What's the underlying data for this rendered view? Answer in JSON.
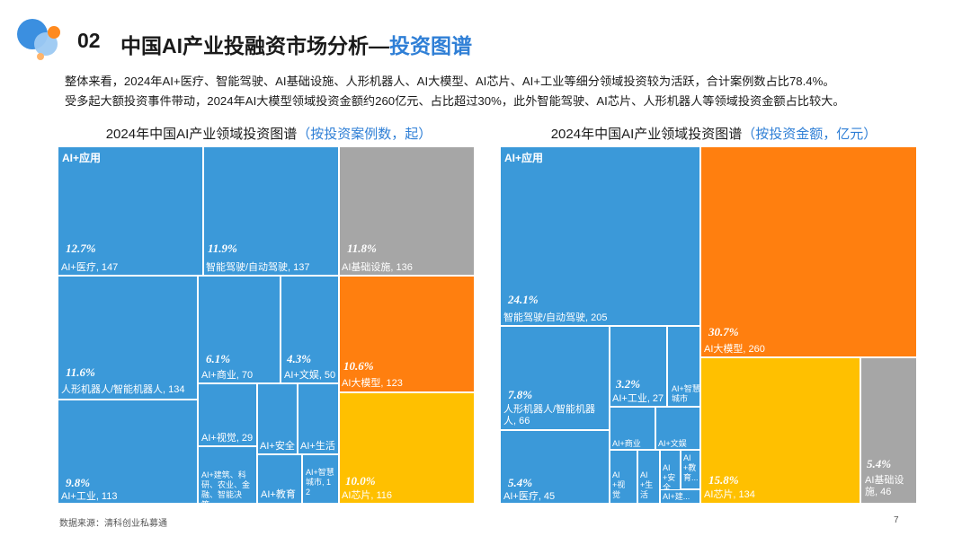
{
  "header": {
    "section_number": "02",
    "title_main": "中国AI产业投融资市场分析—",
    "title_highlight": "投资图谱"
  },
  "summary": [
    "整体来看，2024年AI+医疗、智能驾驶、AI基础设施、人形机器人、AI大模型、AI芯片、AI+工业等细分领域投资较为活跃，合计案例数占比78.4%。",
    "受多起大额投资事件带动，2024年AI大模型领域投资金额约260亿元、占比超过30%，此外智能驾驶、AI芯片、人形机器人等领域投资金额占比较大。"
  ],
  "colors": {
    "blue": "#3b99d9",
    "gray": "#a6a6a6",
    "orange": "#ff7f0f",
    "yellow": "#ffc000",
    "accent": "#2f7fd6"
  },
  "chart_data": [
    {
      "type": "treemap",
      "title": "2024年中国AI产业领域投资图谱",
      "subtitle": "（按投资案例数，起）",
      "group_label": "AI+应用",
      "items": [
        {
          "name": "AI+医疗",
          "value": 147,
          "pct": "12.7%",
          "label": "AI+医疗, 147",
          "group": "应用"
        },
        {
          "name": "智能驾驶/自动驾驶",
          "value": 137,
          "pct": "11.9%",
          "label": "智能驾驶/自动驾驶, 137",
          "group": "应用"
        },
        {
          "name": "AI基础设施",
          "value": 136,
          "pct": "11.8%",
          "label": "AI基础设施, 136",
          "group": "基础设施"
        },
        {
          "name": "人形机器人/智能机器人",
          "value": 134,
          "pct": "11.6%",
          "label": "人形机器人/智能机器人, 134",
          "group": "应用"
        },
        {
          "name": "AI+商业",
          "value": 70,
          "pct": "6.1%",
          "label": "AI+商业, 70",
          "group": "应用"
        },
        {
          "name": "AI+文娱",
          "value": 50,
          "pct": "4.3%",
          "label": "AI+文娱, 50",
          "group": "应用"
        },
        {
          "name": "AI大模型",
          "value": 123,
          "pct": "10.6%",
          "label": "AI大模型, 123",
          "group": "大模型"
        },
        {
          "name": "AI+工业",
          "value": 113,
          "pct": "9.8%",
          "label": "AI+工业, 113",
          "group": "应用"
        },
        {
          "name": "AI+视觉",
          "value": 29,
          "pct": "",
          "label": "AI+视觉, 29",
          "group": "应用"
        },
        {
          "name": "AI+安全",
          "value": null,
          "pct": "",
          "label": "AI+安全",
          "group": "应用"
        },
        {
          "name": "AI+生活",
          "value": null,
          "pct": "",
          "label": "AI+生活",
          "group": "应用"
        },
        {
          "name": "AI+建筑、科研、农业、金融、智能决策...",
          "value": null,
          "pct": "",
          "label": "AI+建筑、科研、农业、金融、智能决策...",
          "group": "应用"
        },
        {
          "name": "AI+教育",
          "value": null,
          "pct": "",
          "label": "AI+教育",
          "group": "应用"
        },
        {
          "name": "AI+智慧城市",
          "value": 12,
          "pct": "",
          "label": "AI+智慧城市, 12",
          "group": "应用"
        },
        {
          "name": "AI芯片",
          "value": 116,
          "pct": "10.0%",
          "label": "AI芯片, 116",
          "group": "芯片"
        }
      ]
    },
    {
      "type": "treemap",
      "title": "2024年中国AI产业领域投资图谱",
      "subtitle": "（按投资金额，亿元）",
      "group_label": "AI+应用",
      "items": [
        {
          "name": "智能驾驶/自动驾驶",
          "value": 205,
          "pct": "24.1%",
          "label": "智能驾驶/自动驾驶, 205",
          "group": "应用"
        },
        {
          "name": "AI大模型",
          "value": 260,
          "pct": "30.7%",
          "label": "AI大模型, 260",
          "group": "大模型"
        },
        {
          "name": "人形机器人/智能机器人",
          "value": 66,
          "pct": "7.8%",
          "label": "人形机器人/智能机器人, 66",
          "group": "应用"
        },
        {
          "name": "AI+工业",
          "value": 27,
          "pct": "3.2%",
          "label": "AI+工业, 27",
          "group": "应用"
        },
        {
          "name": "AI+智慧城市",
          "value": null,
          "pct": "",
          "label": "AI+智慧城市",
          "group": "应用"
        },
        {
          "name": "AI+商业",
          "value": null,
          "pct": "",
          "label": "AI+商业",
          "group": "应用"
        },
        {
          "name": "AI+文娱",
          "value": null,
          "pct": "",
          "label": "AI+文娱",
          "group": "应用"
        },
        {
          "name": "AI+医疗",
          "value": 45,
          "pct": "5.4%",
          "label": "AI+医疗, 45",
          "group": "应用"
        },
        {
          "name": "AI+视觉",
          "value": null,
          "pct": "",
          "label": "AI+视觉",
          "group": "应用"
        },
        {
          "name": "AI+生活",
          "value": null,
          "pct": "",
          "label": "AI+生活",
          "group": "应用"
        },
        {
          "name": "AI+安全",
          "value": null,
          "pct": "",
          "label": "AI+安全",
          "group": "应用"
        },
        {
          "name": "AI+教育...",
          "value": null,
          "pct": "",
          "label": "AI+教育...",
          "group": "应用"
        },
        {
          "name": "AI+建...",
          "value": null,
          "pct": "",
          "label": "AI+建...",
          "group": "应用"
        },
        {
          "name": "AI芯片",
          "value": 134,
          "pct": "15.8%",
          "label": "AI芯片, 134",
          "group": "芯片"
        },
        {
          "name": "AI基础设施",
          "value": 46,
          "pct": "5.4%",
          "label": "AI基础设施, 46",
          "group": "基础设施"
        }
      ]
    }
  ],
  "footer": {
    "source": "数据来源：清科创业私募通",
    "page": "7"
  }
}
